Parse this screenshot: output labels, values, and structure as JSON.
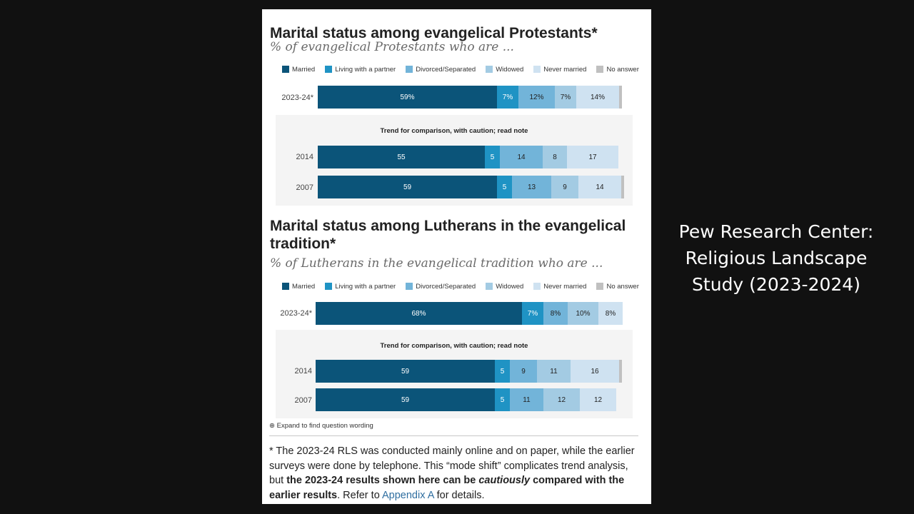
{
  "caption": "Pew Research Center: Religious Landscape Study (2023-2024)",
  "colors": {
    "married": "#0b5479",
    "partner": "#1f93c4",
    "divorced": "#72b4d9",
    "widowed": "#a3cbe3",
    "never": "#cfe2f1",
    "noanswer": "#c0c0c0"
  },
  "legend": [
    "Married",
    "Living with a partner",
    "Divorced/Separated",
    "Widowed",
    "Never married",
    "No answer"
  ],
  "expand_text": "Expand to find question wording",
  "footnote": {
    "p1": "* The 2023-24 RLS was conducted mainly online and on paper, while the earlier surveys were done by telephone. This “mode shift” complicates trend analysis, but ",
    "bold1": "the 2023-24 results shown here can be ",
    "bolditalic": "cautiously",
    "bold2": " compared with the earlier results",
    "p2": ". Refer to ",
    "link": "Appendix A",
    "p3": " for details."
  },
  "chart_data": [
    {
      "type": "bar",
      "orientation": "horizontal-stacked",
      "title": "Marital status among evangelical Protestants*",
      "subtitle": "% of evangelical Protestants who are ...",
      "trend_title": "Trend for comparison, with caution; read note",
      "categories": [
        "Married",
        "Living with a partner",
        "Divorced/Separated",
        "Widowed",
        "Never married",
        "No answer"
      ],
      "rows": [
        {
          "label": "2023-24*",
          "values": [
            59,
            7,
            12,
            7,
            14,
            1
          ],
          "labels": [
            "59%",
            "7%",
            "12%",
            "7%",
            "14%",
            ""
          ]
        },
        {
          "label": "2014",
          "values": [
            55,
            5,
            14,
            8,
            17,
            0
          ],
          "labels": [
            "55",
            "5",
            "14",
            "8",
            "17",
            ""
          ]
        },
        {
          "label": "2007",
          "values": [
            59,
            5,
            13,
            9,
            14,
            1
          ],
          "labels": [
            "59",
            "5",
            "13",
            "9",
            "14",
            ""
          ]
        }
      ]
    },
    {
      "type": "bar",
      "orientation": "horizontal-stacked",
      "title": "Marital status among Lutherans in the evangelical tradition*",
      "subtitle": "% of Lutherans in the evangelical tradition who are ...",
      "trend_title": "Trend for comparison, with caution; read note",
      "categories": [
        "Married",
        "Living with a partner",
        "Divorced/Separated",
        "Widowed",
        "Never married",
        "No answer"
      ],
      "rows": [
        {
          "label": "2023-24*",
          "values": [
            68,
            7,
            8,
            10,
            8,
            0
          ],
          "labels": [
            "68%",
            "7%",
            "8%",
            "10%",
            "8%",
            ""
          ]
        },
        {
          "label": "2014",
          "values": [
            59,
            5,
            9,
            11,
            16,
            1
          ],
          "labels": [
            "59",
            "5",
            "9",
            "11",
            "16",
            ""
          ]
        },
        {
          "label": "2007",
          "values": [
            59,
            5,
            11,
            12,
            12,
            0
          ],
          "labels": [
            "59",
            "5",
            "11",
            "12",
            "12",
            ""
          ]
        }
      ]
    }
  ]
}
